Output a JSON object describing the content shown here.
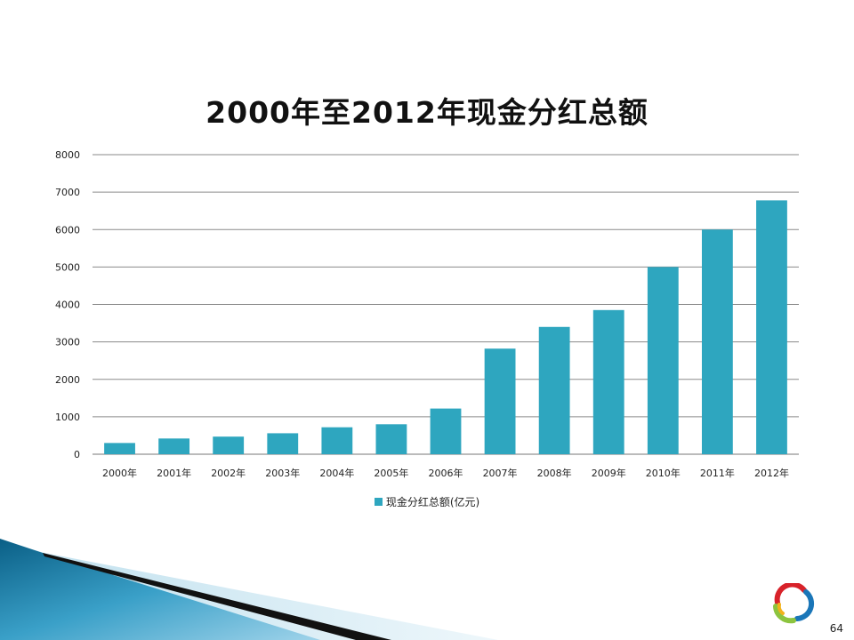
{
  "slide": {
    "page_number": "64"
  },
  "chart_data": {
    "type": "bar",
    "title": "2000年至2012年现金分红总额",
    "categories": [
      "2000年",
      "2001年",
      "2002年",
      "2003年",
      "2004年",
      "2005年",
      "2006年",
      "2007年",
      "2008年",
      "2009年",
      "2010年",
      "2011年",
      "2012年"
    ],
    "series": [
      {
        "name": "现金分红总额(亿元)",
        "color": "#2ea6bf",
        "values": [
          300,
          420,
          470,
          560,
          720,
          800,
          1220,
          2820,
          3400,
          3850,
          5000,
          6000,
          6780
        ]
      }
    ],
    "ylim": [
      0,
      8000
    ],
    "yticks": [
      "0",
      "1000",
      "2000",
      "3000",
      "4000",
      "5000",
      "6000",
      "7000",
      "8000"
    ],
    "grid": true,
    "legend_position": "bottom"
  }
}
